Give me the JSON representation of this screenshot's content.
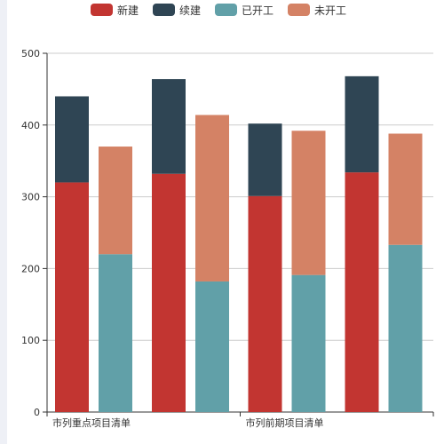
{
  "chart_data": {
    "type": "bar",
    "stacked": true,
    "legend_position": "top",
    "grid": true,
    "ylim": [
      0,
      500
    ],
    "y_ticks": [
      "0",
      "100",
      "200",
      "300",
      "400",
      "500"
    ],
    "categories": [
      "市列重点项目清单",
      "市列前期项目清单"
    ],
    "bars": [
      {
        "category": "市列重点项目清单",
        "stack": [
          {
            "series": "新建",
            "value": 320
          },
          {
            "series": "续建",
            "value": 120
          }
        ]
      },
      {
        "category": "市列重点项目清单",
        "stack": [
          {
            "series": "已开工",
            "value": 220
          },
          {
            "series": "未开工",
            "value": 150
          }
        ]
      },
      {
        "category": "市列重点项目清单",
        "stack": [
          {
            "series": "新建",
            "value": 332
          },
          {
            "series": "续建",
            "value": 132
          }
        ]
      },
      {
        "category": "市列重点项目清单",
        "stack": [
          {
            "series": "已开工",
            "value": 182
          },
          {
            "series": "未开工",
            "value": 232
          }
        ]
      },
      {
        "category": "市列前期项目清单",
        "stack": [
          {
            "series": "新建",
            "value": 301
          },
          {
            "series": "续建",
            "value": 101
          }
        ]
      },
      {
        "category": "市列前期项目清单",
        "stack": [
          {
            "series": "已开工",
            "value": 191
          },
          {
            "series": "未开工",
            "value": 201
          }
        ]
      },
      {
        "category": "市列前期项目清单",
        "stack": [
          {
            "series": "新建",
            "value": 334
          },
          {
            "series": "续建",
            "value": 134
          }
        ]
      },
      {
        "category": "市列前期项目清单",
        "stack": [
          {
            "series": "已开工",
            "value": 233
          },
          {
            "series": "未开工",
            "value": 155
          }
        ]
      }
    ],
    "series": [
      {
        "name": "新建",
        "color": "#c23531"
      },
      {
        "name": "续建",
        "color": "#2f4554"
      },
      {
        "name": "已开工",
        "color": "#61a0a8"
      },
      {
        "name": "未开工",
        "color": "#d48265"
      }
    ]
  }
}
